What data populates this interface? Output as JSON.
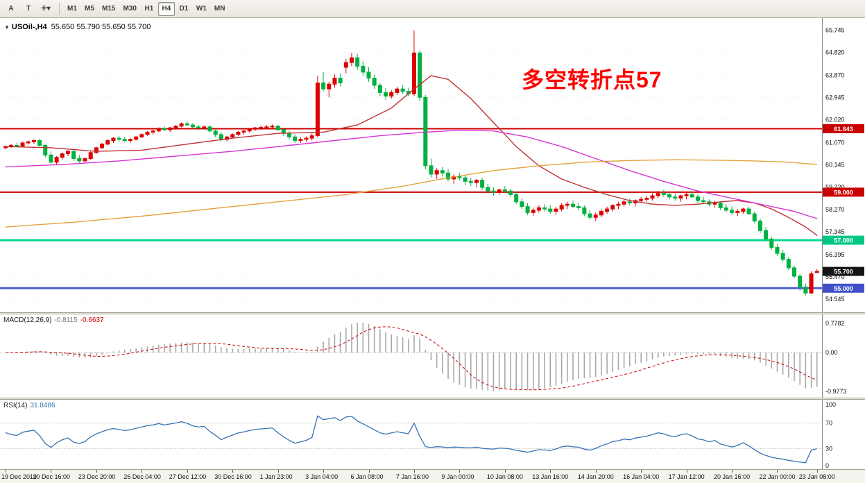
{
  "toolbar": {
    "left_buttons": [
      {
        "label": "A",
        "name": "arrow-tool-button"
      },
      {
        "label": "T",
        "name": "crosshair-tool-button"
      },
      {
        "label": "✛▾",
        "name": "line-studies-button"
      }
    ],
    "timeframes": [
      "M1",
      "M5",
      "M15",
      "M30",
      "H1",
      "H4",
      "D1",
      "W1",
      "MN"
    ],
    "active_timeframe": "H4"
  },
  "chart_data": {
    "type": "candlestick",
    "symbol": "USOil-",
    "timeframe": "H4",
    "header": {
      "collapse_icon": "▼",
      "symbol": "USOil-,H4",
      "ohlc": "55.650 55.790 55.650 55.700"
    },
    "annotation": {
      "text": "多空转折点57",
      "color": "#FF0000"
    },
    "up_color": "#DD0000",
    "down_color": "#00B140",
    "ylim": [
      54.17,
      66.08
    ],
    "y_ticks": [
      "65.745",
      "64.820",
      "63.870",
      "62.945",
      "62.020",
      "61.070",
      "60.145",
      "59.220",
      "58.270",
      "57.345",
      "56.395",
      "55.470",
      "54.545"
    ],
    "time_labels": [
      "19 Dec 2019",
      "20 Dec 16:00",
      "23 Dec 20:00",
      "26 Dec 04:00",
      "27 Dec 12:00",
      "30 Dec 16:00",
      "1 Jan 23:00",
      "3 Jan 04:00",
      "6 Jan 08:00",
      "7 Jan 16:00",
      "9 Jan 00:00",
      "10 Jan 08:00",
      "13 Jan 16:00",
      "14 Jan 20:00",
      "16 Jan 04:00",
      "17 Jan 12:00",
      "20 Jan 16:00",
      "22 Jan 00:00",
      "23 Jan 08:00"
    ],
    "hlines": [
      {
        "price": 61.643,
        "label": "61.643",
        "color": "#CC0000",
        "width": 2
      },
      {
        "price": 59.0,
        "label": "59.000",
        "color": "#CC0000",
        "width": 2
      },
      {
        "price": 57.0,
        "label": "57.000",
        "color": "#00D98F",
        "width": 3
      },
      {
        "price": 55.0,
        "label": "55.000",
        "color": "#4A5FD0",
        "width": 3
      }
    ],
    "price_badges": [
      {
        "price": 61.643,
        "label": "61.643",
        "bg": "#C80000"
      },
      {
        "price": 59.0,
        "label": "59.000",
        "bg": "#C80000"
      },
      {
        "price": 57.0,
        "label": "57.000",
        "bg": "#00C882"
      },
      {
        "price": 55.7,
        "label": "55.700",
        "bg": "#151515"
      },
      {
        "price": 55.0,
        "label": "55.000",
        "bg": "#4050C8"
      }
    ],
    "candles": [
      [
        60.85,
        60.95,
        60.78,
        60.9
      ],
      [
        60.9,
        61.0,
        60.85,
        60.95
      ],
      [
        60.95,
        61.05,
        60.88,
        60.92
      ],
      [
        60.92,
        61.1,
        60.9,
        61.05
      ],
      [
        61.05,
        61.15,
        60.98,
        61.1
      ],
      [
        61.1,
        61.2,
        61.02,
        61.15
      ],
      [
        61.15,
        61.22,
        60.9,
        60.95
      ],
      [
        60.95,
        61.0,
        60.45,
        60.55
      ],
      [
        60.55,
        60.7,
        60.18,
        60.25
      ],
      [
        60.25,
        60.5,
        60.15,
        60.45
      ],
      [
        60.45,
        60.65,
        60.35,
        60.6
      ],
      [
        60.6,
        60.75,
        60.5,
        60.7
      ],
      [
        60.7,
        60.75,
        60.3,
        60.4
      ],
      [
        60.4,
        60.55,
        60.22,
        60.3
      ],
      [
        60.3,
        60.45,
        60.2,
        60.4
      ],
      [
        60.4,
        60.7,
        60.35,
        60.65
      ],
      [
        60.65,
        60.9,
        60.6,
        60.85
      ],
      [
        60.85,
        61.05,
        60.8,
        61.0
      ],
      [
        61.0,
        61.2,
        60.95,
        61.15
      ],
      [
        61.15,
        61.3,
        61.05,
        61.25
      ],
      [
        61.25,
        61.35,
        61.1,
        61.2
      ],
      [
        61.2,
        61.3,
        61.1,
        61.15
      ],
      [
        61.15,
        61.25,
        61.05,
        61.2
      ],
      [
        61.2,
        61.35,
        61.15,
        61.3
      ],
      [
        61.3,
        61.45,
        61.25,
        61.4
      ],
      [
        61.4,
        61.55,
        61.35,
        61.5
      ],
      [
        61.5,
        61.6,
        61.4,
        61.55
      ],
      [
        61.55,
        61.7,
        61.5,
        61.65
      ],
      [
        61.65,
        61.75,
        61.55,
        61.6
      ],
      [
        61.6,
        61.72,
        61.5,
        61.68
      ],
      [
        61.68,
        61.8,
        61.6,
        61.75
      ],
      [
        61.75,
        61.9,
        61.7,
        61.85
      ],
      [
        61.85,
        61.95,
        61.75,
        61.8
      ],
      [
        61.8,
        61.88,
        61.65,
        61.72
      ],
      [
        61.72,
        61.8,
        61.6,
        61.68
      ],
      [
        61.68,
        61.78,
        61.62,
        61.72
      ],
      [
        61.72,
        61.78,
        61.5,
        61.55
      ],
      [
        61.55,
        61.6,
        61.3,
        61.4
      ],
      [
        61.4,
        61.5,
        61.1,
        61.2
      ],
      [
        61.2,
        61.35,
        61.12,
        61.3
      ],
      [
        61.3,
        61.45,
        61.25,
        61.4
      ],
      [
        61.4,
        61.55,
        61.35,
        61.5
      ],
      [
        61.5,
        61.6,
        61.4,
        61.55
      ],
      [
        61.55,
        61.68,
        61.48,
        61.62
      ],
      [
        61.62,
        61.72,
        61.55,
        61.68
      ],
      [
        61.68,
        61.78,
        61.6,
        61.7
      ],
      [
        61.7,
        61.8,
        61.62,
        61.72
      ],
      [
        61.72,
        61.82,
        61.65,
        61.75
      ],
      [
        61.75,
        61.8,
        61.55,
        61.6
      ],
      [
        61.6,
        61.65,
        61.35,
        61.45
      ],
      [
        61.45,
        61.55,
        61.2,
        61.3
      ],
      [
        61.3,
        61.4,
        61.05,
        61.15
      ],
      [
        61.15,
        61.3,
        61.05,
        61.2
      ],
      [
        61.2,
        61.32,
        61.1,
        61.25
      ],
      [
        61.25,
        61.45,
        61.15,
        61.35
      ],
      [
        61.35,
        63.85,
        61.3,
        63.55
      ],
      [
        63.55,
        64.0,
        63.2,
        63.3
      ],
      [
        63.3,
        63.6,
        62.95,
        63.5
      ],
      [
        63.5,
        63.9,
        63.35,
        63.75
      ],
      [
        63.75,
        63.95,
        63.4,
        63.55
      ],
      [
        64.2,
        64.55,
        63.95,
        64.4
      ],
      [
        64.4,
        64.8,
        64.25,
        64.6
      ],
      [
        64.6,
        64.75,
        64.1,
        64.25
      ],
      [
        64.25,
        64.45,
        63.85,
        64.0
      ],
      [
        64.0,
        64.2,
        63.6,
        63.75
      ],
      [
        63.75,
        63.9,
        63.3,
        63.45
      ],
      [
        63.45,
        63.55,
        63.0,
        63.15
      ],
      [
        63.15,
        63.35,
        62.85,
        63.0
      ],
      [
        63.0,
        63.25,
        62.9,
        63.15
      ],
      [
        63.15,
        63.4,
        63.05,
        63.3
      ],
      [
        63.3,
        63.45,
        63.1,
        63.2
      ],
      [
        63.2,
        63.35,
        63.0,
        63.1
      ],
      [
        63.1,
        65.74,
        63.0,
        64.8
      ],
      [
        64.8,
        64.9,
        62.8,
        62.95
      ],
      [
        62.95,
        63.05,
        59.95,
        60.1
      ],
      [
        60.1,
        60.4,
        59.6,
        59.75
      ],
      [
        59.75,
        60.0,
        59.55,
        59.9
      ],
      [
        59.9,
        60.05,
        59.65,
        59.8
      ],
      [
        59.8,
        59.95,
        59.45,
        59.55
      ],
      [
        59.55,
        59.75,
        59.35,
        59.65
      ],
      [
        59.65,
        59.8,
        59.5,
        59.6
      ],
      [
        59.6,
        59.7,
        59.3,
        59.45
      ],
      [
        59.45,
        59.6,
        59.25,
        59.4
      ],
      [
        59.4,
        59.55,
        59.2,
        59.5
      ],
      [
        59.5,
        59.6,
        59.1,
        59.2
      ],
      [
        59.2,
        59.35,
        58.95,
        59.05
      ],
      [
        59.05,
        59.2,
        58.85,
        59.0
      ],
      [
        59.0,
        59.15,
        58.9,
        59.1
      ],
      [
        59.1,
        59.25,
        58.95,
        59.05
      ],
      [
        59.05,
        59.15,
        58.8,
        58.9
      ],
      [
        58.9,
        59.0,
        58.5,
        58.6
      ],
      [
        58.6,
        58.75,
        58.3,
        58.4
      ],
      [
        58.4,
        58.55,
        58.05,
        58.15
      ],
      [
        58.15,
        58.35,
        58.0,
        58.25
      ],
      [
        58.25,
        58.45,
        58.15,
        58.35
      ],
      [
        58.35,
        58.5,
        58.2,
        58.3
      ],
      [
        58.3,
        58.45,
        58.1,
        58.2
      ],
      [
        58.2,
        58.4,
        58.05,
        58.3
      ],
      [
        58.3,
        58.55,
        58.2,
        58.45
      ],
      [
        58.45,
        58.6,
        58.3,
        58.5
      ],
      [
        58.5,
        58.65,
        58.35,
        58.4
      ],
      [
        58.4,
        58.55,
        58.25,
        58.35
      ],
      [
        58.35,
        58.45,
        58.0,
        58.1
      ],
      [
        58.1,
        58.25,
        57.85,
        57.95
      ],
      [
        57.95,
        58.15,
        57.8,
        58.05
      ],
      [
        58.05,
        58.3,
        57.95,
        58.2
      ],
      [
        58.2,
        58.4,
        58.1,
        58.3
      ],
      [
        58.3,
        58.5,
        58.2,
        58.45
      ],
      [
        58.45,
        58.6,
        58.3,
        58.5
      ],
      [
        58.5,
        58.7,
        58.4,
        58.6
      ],
      [
        58.6,
        58.75,
        58.45,
        58.55
      ],
      [
        58.55,
        58.7,
        58.4,
        58.65
      ],
      [
        58.65,
        58.8,
        58.55,
        58.7
      ],
      [
        58.7,
        58.85,
        58.6,
        58.75
      ],
      [
        58.75,
        58.95,
        58.65,
        58.85
      ],
      [
        58.85,
        59.05,
        58.75,
        58.95
      ],
      [
        58.95,
        59.1,
        58.8,
        58.9
      ],
      [
        58.9,
        59.0,
        58.7,
        58.8
      ],
      [
        58.8,
        58.95,
        58.65,
        58.75
      ],
      [
        58.75,
        58.9,
        58.6,
        58.85
      ],
      [
        58.85,
        59.0,
        58.7,
        58.9
      ],
      [
        58.9,
        59.05,
        58.75,
        58.8
      ],
      [
        58.8,
        58.9,
        58.55,
        58.65
      ],
      [
        58.65,
        58.8,
        58.5,
        58.6
      ],
      [
        58.6,
        58.7,
        58.4,
        58.5
      ],
      [
        58.5,
        58.65,
        58.35,
        58.55
      ],
      [
        58.55,
        58.6,
        58.25,
        58.35
      ],
      [
        58.35,
        58.5,
        58.15,
        58.25
      ],
      [
        58.25,
        58.4,
        58.05,
        58.15
      ],
      [
        58.15,
        58.3,
        58.0,
        58.2
      ],
      [
        58.2,
        58.35,
        58.1,
        58.3
      ],
      [
        58.3,
        58.4,
        58.05,
        58.1
      ],
      [
        58.1,
        58.2,
        57.7,
        57.8
      ],
      [
        57.8,
        57.9,
        57.3,
        57.4
      ],
      [
        57.4,
        57.55,
        56.95,
        57.05
      ],
      [
        57.05,
        57.15,
        56.6,
        56.7
      ],
      [
        56.7,
        56.85,
        56.35,
        56.45
      ],
      [
        56.45,
        56.6,
        56.1,
        56.2
      ],
      [
        56.2,
        56.3,
        55.75,
        55.85
      ],
      [
        55.85,
        55.95,
        55.4,
        55.5
      ],
      [
        55.5,
        55.6,
        54.9,
        55.05
      ],
      [
        55.05,
        55.2,
        54.7,
        54.8
      ],
      [
        54.8,
        55.7,
        54.75,
        55.6
      ],
      [
        55.65,
        55.79,
        55.65,
        55.7
      ]
    ],
    "ma_lines": [
      {
        "name": "ma-fast-red",
        "color": "#C23030",
        "points": [
          [
            0,
            60.9
          ],
          [
            8,
            60.85
          ],
          [
            16,
            60.7
          ],
          [
            24,
            60.75
          ],
          [
            32,
            61.0
          ],
          [
            40,
            61.25
          ],
          [
            48,
            61.45
          ],
          [
            56,
            61.5
          ],
          [
            62,
            61.8
          ],
          [
            68,
            62.5
          ],
          [
            72,
            63.3
          ],
          [
            75,
            63.85
          ],
          [
            78,
            63.7
          ],
          [
            82,
            62.9
          ],
          [
            86,
            61.9
          ],
          [
            90,
            60.9
          ],
          [
            94,
            60.1
          ],
          [
            98,
            59.55
          ],
          [
            102,
            59.2
          ],
          [
            106,
            58.9
          ],
          [
            110,
            58.65
          ],
          [
            114,
            58.5
          ],
          [
            118,
            58.45
          ],
          [
            122,
            58.5
          ],
          [
            126,
            58.6
          ],
          [
            129,
            58.65
          ],
          [
            132,
            58.55
          ],
          [
            135,
            58.3
          ],
          [
            138,
            57.95
          ],
          [
            141,
            57.55
          ],
          [
            143,
            57.2
          ]
        ]
      },
      {
        "name": "ma-mid-magenta",
        "color": "#D633D6",
        "points": [
          [
            0,
            60.05
          ],
          [
            10,
            60.15
          ],
          [
            20,
            60.3
          ],
          [
            30,
            60.5
          ],
          [
            40,
            60.7
          ],
          [
            50,
            60.95
          ],
          [
            58,
            61.15
          ],
          [
            66,
            61.35
          ],
          [
            74,
            61.5
          ],
          [
            80,
            61.58
          ],
          [
            86,
            61.55
          ],
          [
            92,
            61.3
          ],
          [
            98,
            60.9
          ],
          [
            104,
            60.4
          ],
          [
            110,
            59.9
          ],
          [
            116,
            59.45
          ],
          [
            122,
            59.05
          ],
          [
            128,
            58.75
          ],
          [
            134,
            58.45
          ],
          [
            139,
            58.2
          ],
          [
            143,
            57.9
          ]
        ]
      },
      {
        "name": "ma-slow-orange",
        "color": "#E6A23C",
        "points": [
          [
            0,
            57.55
          ],
          [
            12,
            57.75
          ],
          [
            24,
            58.0
          ],
          [
            36,
            58.3
          ],
          [
            48,
            58.6
          ],
          [
            60,
            58.9
          ],
          [
            70,
            59.25
          ],
          [
            78,
            59.6
          ],
          [
            86,
            59.9
          ],
          [
            94,
            60.1
          ],
          [
            102,
            60.25
          ],
          [
            110,
            60.32
          ],
          [
            118,
            60.35
          ],
          [
            126,
            60.33
          ],
          [
            132,
            60.3
          ],
          [
            138,
            60.25
          ],
          [
            143,
            60.15
          ]
        ]
      }
    ],
    "macd": {
      "label": "MACD(12,26,9)",
      "main_value": "-0.8115",
      "signal_value": "-0.6637",
      "ticks": [
        "0.7782",
        "0.00",
        "-0.9773"
      ],
      "histogram_color": "#A8A8A8",
      "signal_color": "#CC0000"
    },
    "rsi": {
      "label": "RSI(14)",
      "value": "31.8486",
      "ticks": [
        100,
        70,
        30,
        0
      ],
      "levels": [
        70,
        30
      ],
      "color": "#3672B0"
    }
  }
}
